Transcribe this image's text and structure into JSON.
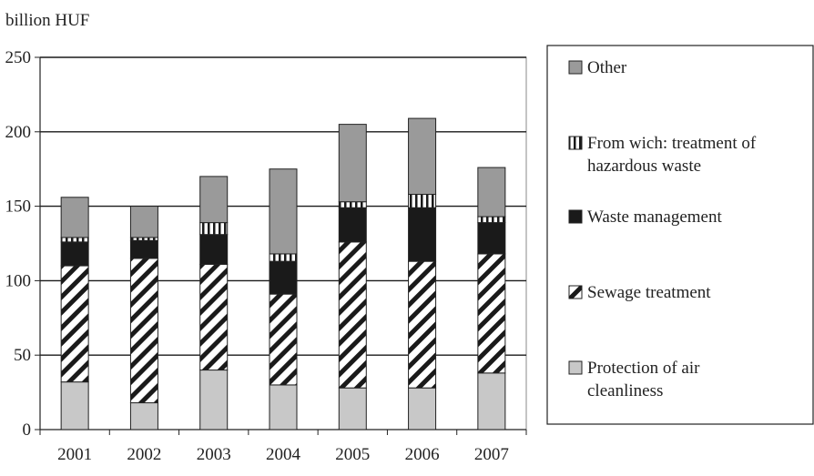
{
  "chart_data": {
    "type": "bar",
    "stacked": true,
    "ylabel": "billion HUF",
    "ylim": [
      0,
      250
    ],
    "yticks": [
      0,
      50,
      100,
      150,
      200,
      250
    ],
    "grid": true,
    "legend_position": "right",
    "categories": [
      "2001",
      "2002",
      "2003",
      "2004",
      "2005",
      "2006",
      "2007"
    ],
    "series": [
      {
        "name": "Protection of air cleanliness",
        "values": [
          32,
          18,
          40,
          30,
          28,
          28,
          38
        ],
        "pattern": "light-gray"
      },
      {
        "name": "Sewage treatment",
        "values": [
          78,
          97,
          71,
          61,
          98,
          85,
          80
        ],
        "pattern": "diagonal-hatch"
      },
      {
        "name": "Waste management",
        "values": [
          16,
          12,
          20,
          22,
          23,
          36,
          21
        ],
        "pattern": "black"
      },
      {
        "name": "From wich: treatment of hazardous waste",
        "values": [
          3,
          2,
          8,
          5,
          4,
          9,
          4
        ],
        "pattern": "vertical-stripes"
      },
      {
        "name": "Other",
        "values": [
          27,
          21,
          31,
          57,
          52,
          51,
          33
        ],
        "pattern": "medium-gray"
      }
    ],
    "legend_order": [
      4,
      3,
      2,
      1,
      0
    ],
    "legend_lines": {
      "4": [
        "Other"
      ],
      "3": [
        "From wich: treatment of",
        "hazardous waste"
      ],
      "2": [
        "Waste management"
      ],
      "1": [
        "Sewage treatment"
      ],
      "0": [
        "Protection of air",
        "cleanliness"
      ]
    },
    "colors": {
      "light-gray": "#c8c8c8",
      "medium-gray": "#9a9a9a",
      "black": "#1a1a1a",
      "diagonal-hatch": "#1a1a1a",
      "vertical-stripes": "#1a1a1a",
      "gridline": "#1a1a1a"
    }
  }
}
